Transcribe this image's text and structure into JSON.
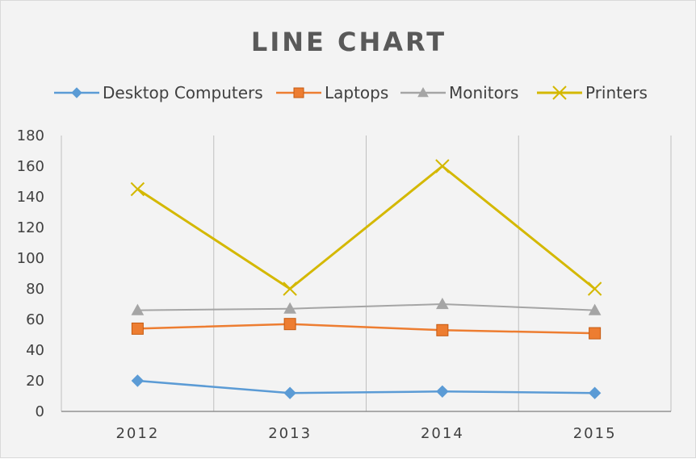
{
  "colors": {
    "desktop": "#5b9bd5",
    "laptops": "#ed7d31",
    "monitors": "#a5a5a5",
    "printers": "#d4b800",
    "grid": "#bfbfbf",
    "axis": "#7f7f7f"
  },
  "chart_data": {
    "type": "line",
    "title": "LINE CHART",
    "xlabel": "",
    "ylabel": "",
    "ylim": [
      0,
      180
    ],
    "y_ticks": [
      "0",
      "20",
      "40",
      "60",
      "80",
      "100",
      "120",
      "140",
      "160",
      "180"
    ],
    "categories": [
      "2012",
      "2013",
      "2014",
      "2015"
    ],
    "legend_position": "top",
    "series": [
      {
        "name": "Desktop Computers",
        "marker": "diamond",
        "color_key": "desktop",
        "values": [
          20,
          12,
          13,
          12
        ]
      },
      {
        "name": "Laptops",
        "marker": "square",
        "color_key": "laptops",
        "values": [
          54,
          57,
          53,
          51
        ]
      },
      {
        "name": "Monitors",
        "marker": "triangle",
        "color_key": "monitors",
        "values": [
          66,
          67,
          70,
          66
        ]
      },
      {
        "name": "Printers",
        "marker": "x",
        "color_key": "printers",
        "values": [
          145,
          80,
          160,
          80
        ]
      }
    ]
  }
}
